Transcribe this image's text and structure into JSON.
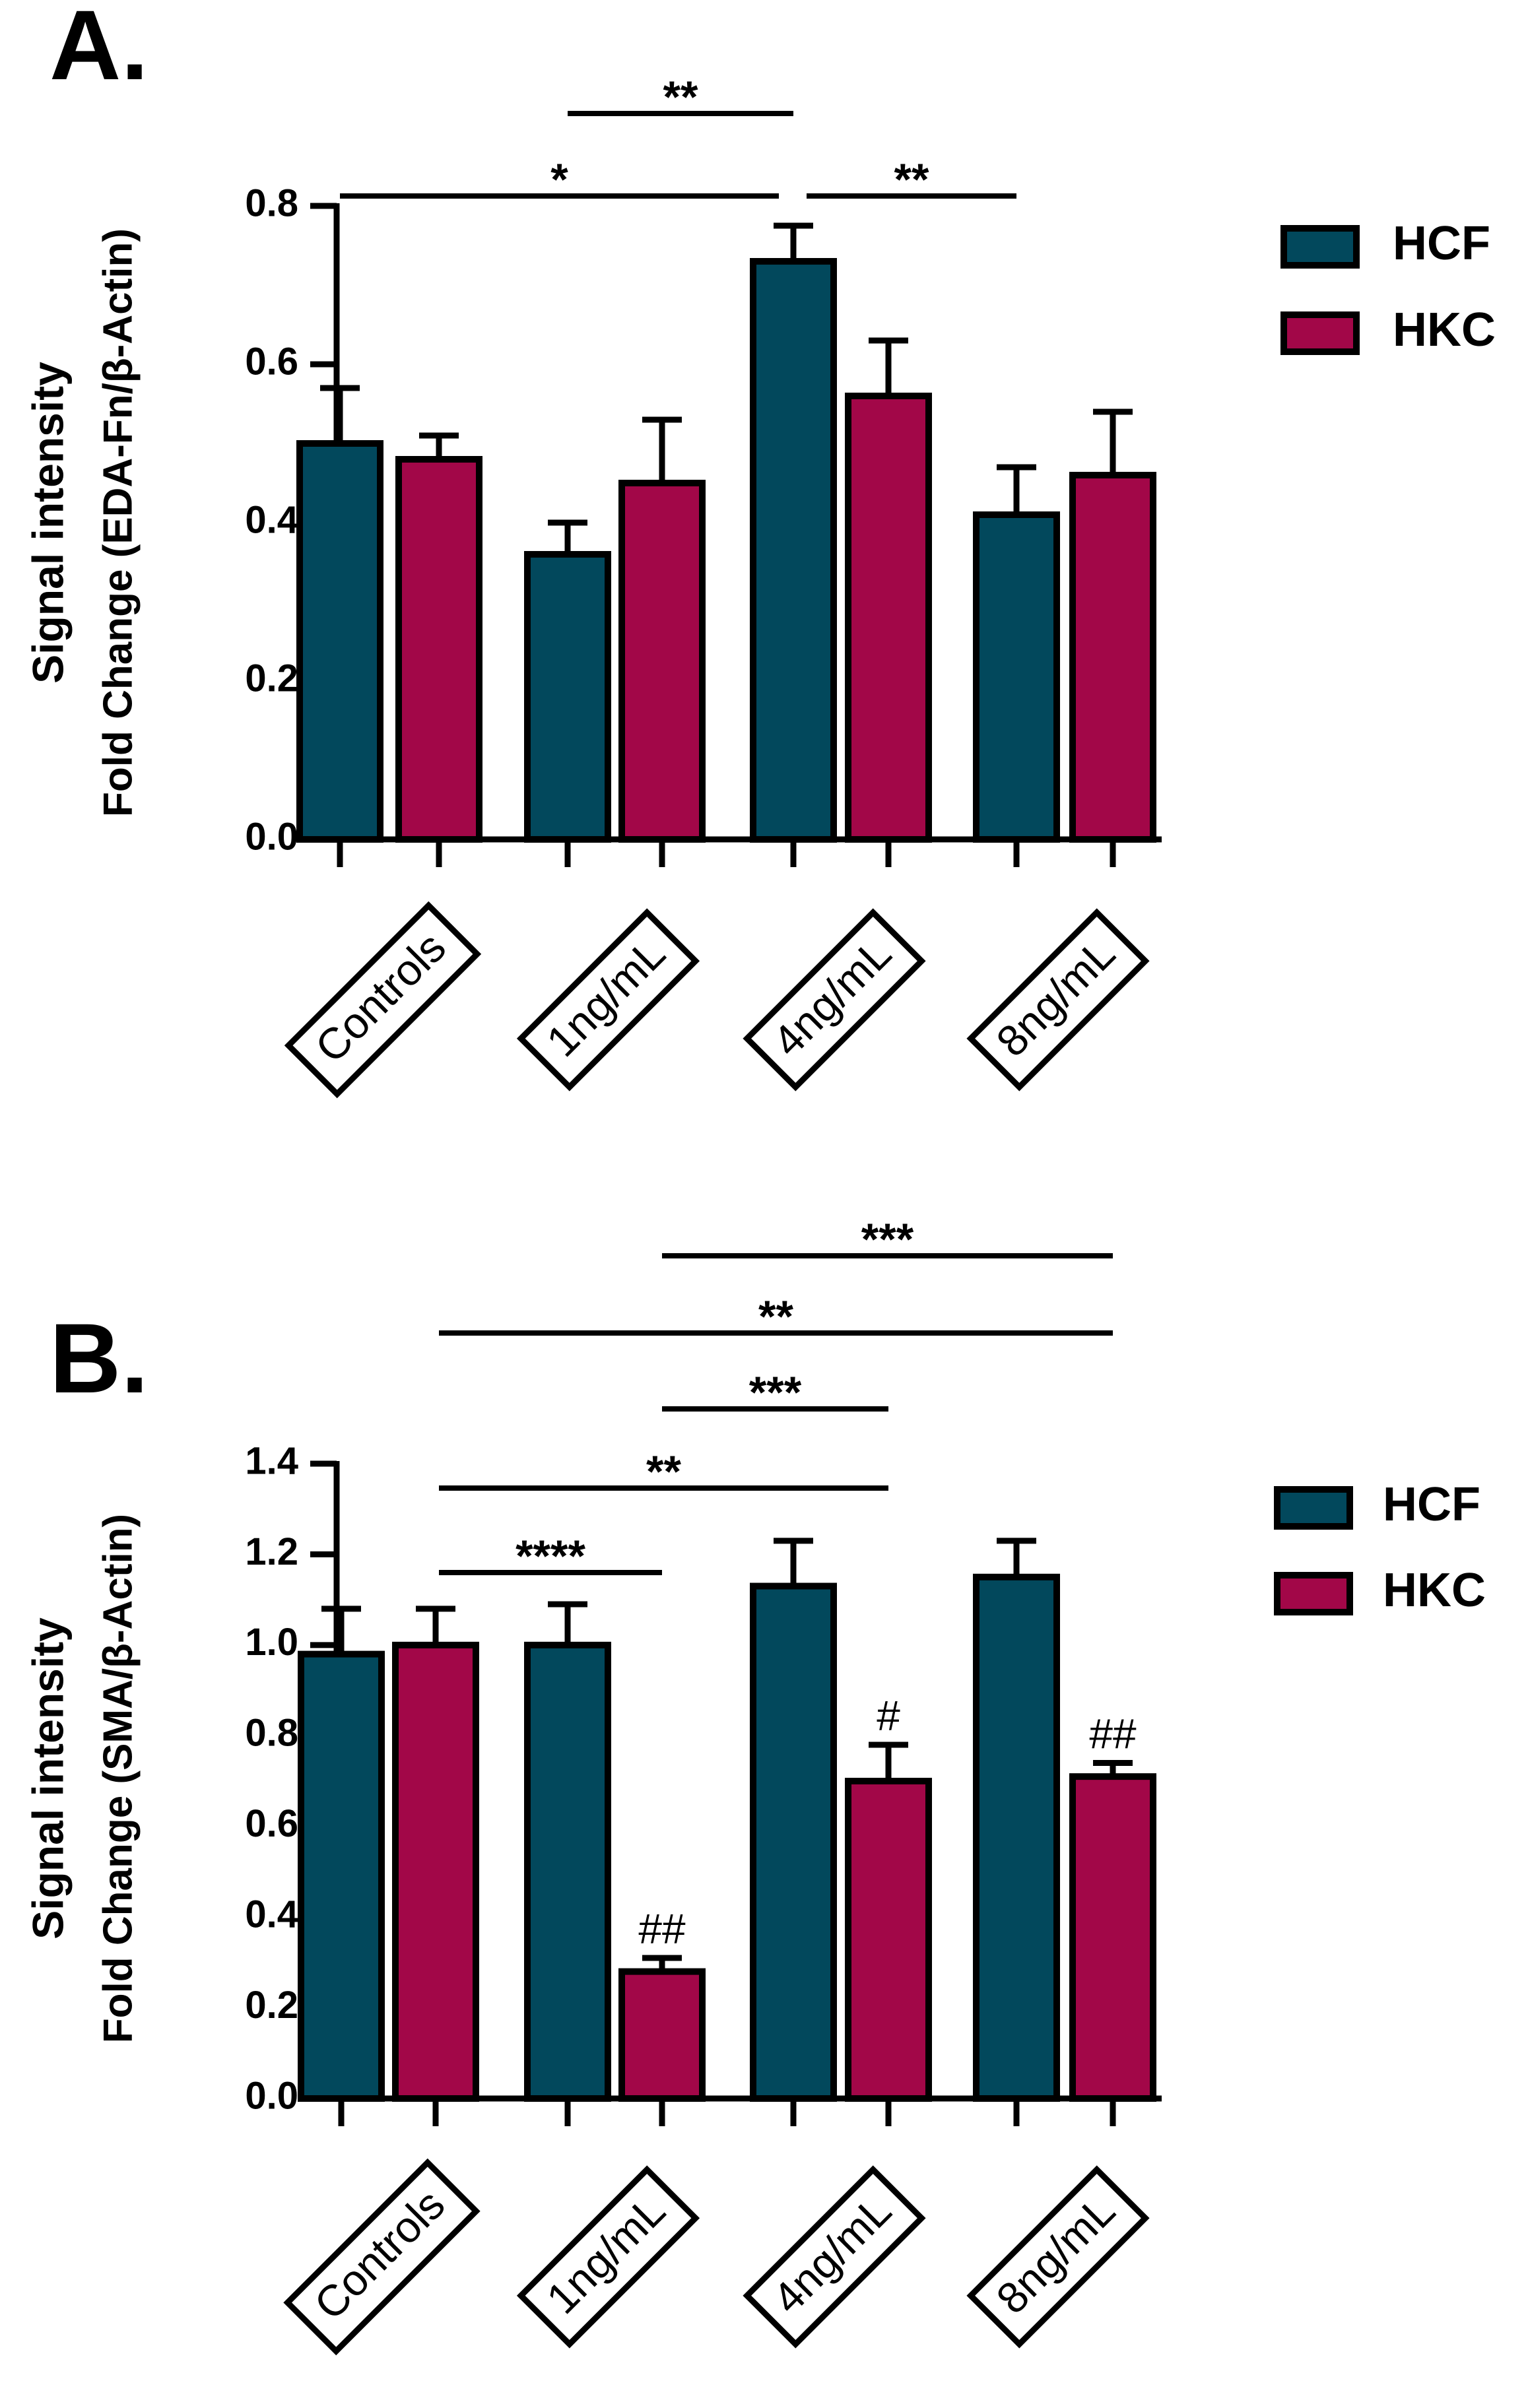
{
  "colors": {
    "hcf": "#02485c",
    "hkc": "#a20748",
    "ink": "#000000"
  },
  "chart_data": [
    {
      "panel_label": "A.",
      "type": "bar",
      "categories": [
        "Controls",
        "1ng/mL",
        "4ng/mL",
        "8ng/mL"
      ],
      "ylabel_line1": "Signal intensity",
      "ylabel_line2": "Fold Change (EDA-Fn/β-Actin)",
      "ylim": [
        0,
        0.8
      ],
      "yticks": [
        "0.0",
        "0.2",
        "0.4",
        "0.6",
        "0.8"
      ],
      "legend_position": "top-right",
      "series": [
        {
          "name": "HCF",
          "values": [
            0.5,
            0.36,
            0.73,
            0.41
          ],
          "errors": [
            0.07,
            0.04,
            0.045,
            0.06
          ],
          "marks": [
            "",
            "",
            "",
            ""
          ]
        },
        {
          "name": "HKC",
          "values": [
            0.48,
            0.45,
            0.56,
            0.46
          ],
          "errors": [
            0.03,
            0.08,
            0.07,
            0.08
          ],
          "marks": [
            "",
            "",
            "",
            ""
          ]
        }
      ],
      "comparisons": [
        {
          "label": "**",
          "from": "1ng/mL HCF",
          "to": "4ng/mL HCF"
        },
        {
          "label": "*",
          "from": "Controls HCF",
          "to": "4ng/mL HCF"
        },
        {
          "label": "**",
          "from": "4ng/mL HCF",
          "to": "8ng/mL HCF"
        }
      ]
    },
    {
      "panel_label": "B.",
      "type": "bar",
      "categories": [
        "Controls",
        "1ng/mL",
        "4ng/mL",
        "8ng/mL"
      ],
      "ylabel_line1": "Signal intensity",
      "ylabel_line2": "Fold Change (SMA/β-Actin)",
      "ylim": [
        0,
        1.4
      ],
      "yticks": [
        "0.0",
        "0.2",
        "0.4",
        "0.6",
        "0.8",
        "1.0",
        "1.2",
        "1.4"
      ],
      "legend_position": "top-right",
      "series": [
        {
          "name": "HCF",
          "values": [
            0.98,
            1.0,
            1.13,
            1.15
          ],
          "errors": [
            0.1,
            0.09,
            0.1,
            0.08
          ],
          "marks": [
            "",
            "",
            "",
            ""
          ]
        },
        {
          "name": "HKC",
          "values": [
            1.0,
            0.28,
            0.7,
            0.71
          ],
          "errors": [
            0.08,
            0.03,
            0.08,
            0.03
          ],
          "marks": [
            "",
            "##",
            "#",
            "##"
          ]
        }
      ],
      "comparisons": [
        {
          "label": "***",
          "from": "1ng/mL HKC",
          "to": "8ng/mL HKC"
        },
        {
          "label": "**",
          "from": "Controls HKC",
          "to": "8ng/mL HKC"
        },
        {
          "label": "***",
          "from": "1ng/mL HKC",
          "to": "4ng/mL HKC"
        },
        {
          "label": "**",
          "from": "Controls HKC",
          "to": "4ng/mL HKC"
        },
        {
          "label": "****",
          "from": "Controls HKC",
          "to": "1ng/mL HKC"
        }
      ]
    }
  ]
}
